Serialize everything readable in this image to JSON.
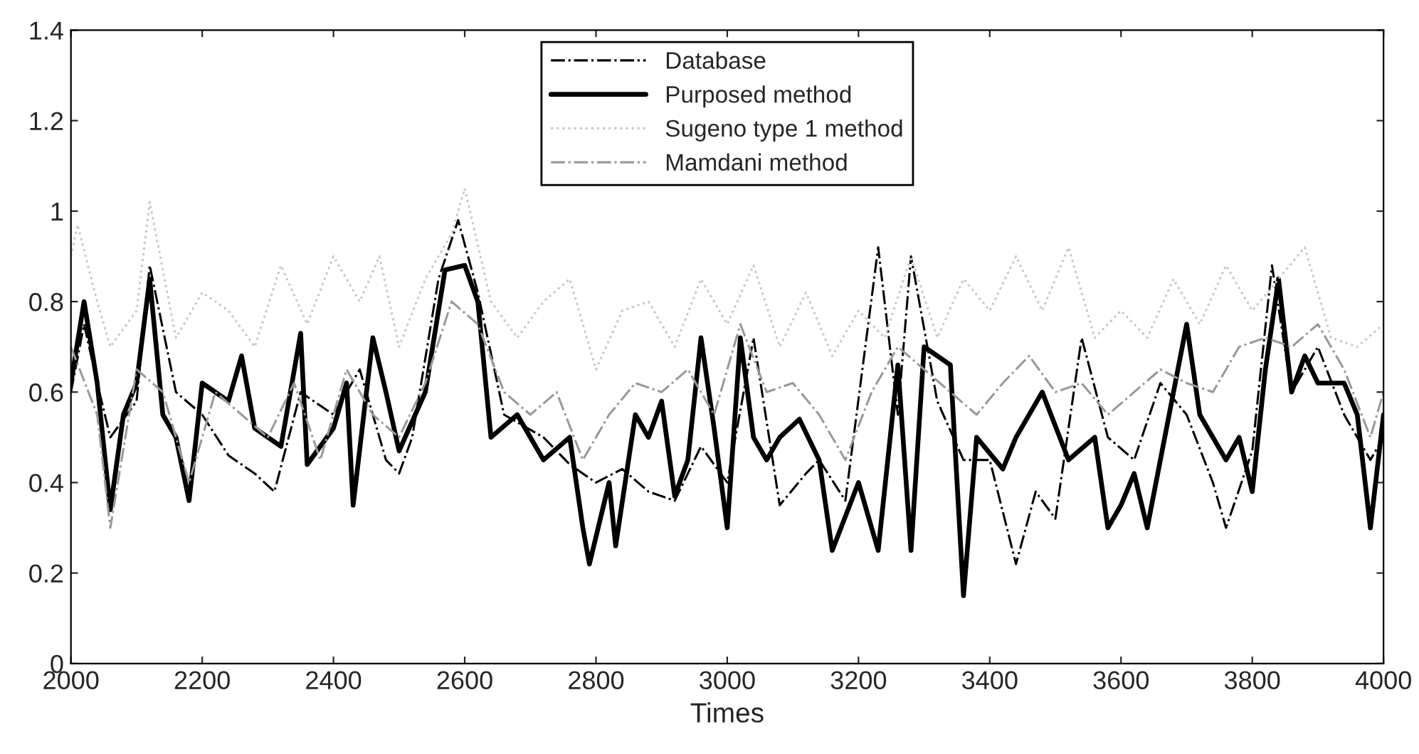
{
  "chart_data": {
    "type": "line",
    "xlabel": "Times",
    "xlim": [
      2000,
      4000
    ],
    "xticks": [
      2000,
      2200,
      2400,
      2600,
      2800,
      3000,
      3200,
      3400,
      3600,
      3800,
      4000
    ],
    "ylim": [
      0,
      1.4
    ],
    "yticks": [
      0,
      0.2,
      0.4,
      0.6,
      0.8,
      1,
      1.2,
      1.4
    ],
    "grid": false,
    "legend": "top",
    "marker": "none",
    "series": [
      {
        "name": "Database",
        "color": "#000000",
        "line_style": "dashed",
        "x": [
          2000,
          2020,
          2040,
          2060,
          2100,
          2120,
          2160,
          2200,
          2240,
          2280,
          2310,
          2350,
          2400,
          2440,
          2480,
          2500,
          2520,
          2560,
          2590,
          2620,
          2660,
          2720,
          2760,
          2800,
          2840,
          2880,
          2920,
          2960,
          3000,
          3040,
          3080,
          3120,
          3140,
          3180,
          3230,
          3260,
          3280,
          3320,
          3360,
          3400,
          3440,
          3470,
          3500,
          3540,
          3580,
          3620,
          3660,
          3700,
          3740,
          3760,
          3800,
          3830,
          3860,
          3900,
          3940,
          3980,
          4000
        ],
        "values": [
          0.6,
          0.75,
          0.62,
          0.5,
          0.58,
          0.88,
          0.6,
          0.55,
          0.46,
          0.42,
          0.38,
          0.6,
          0.55,
          0.65,
          0.45,
          0.42,
          0.5,
          0.85,
          0.98,
          0.82,
          0.55,
          0.5,
          0.44,
          0.4,
          0.43,
          0.38,
          0.36,
          0.48,
          0.4,
          0.72,
          0.35,
          0.42,
          0.45,
          0.36,
          0.92,
          0.55,
          0.9,
          0.58,
          0.45,
          0.45,
          0.22,
          0.38,
          0.32,
          0.72,
          0.5,
          0.45,
          0.62,
          0.55,
          0.4,
          0.3,
          0.47,
          0.88,
          0.6,
          0.7,
          0.55,
          0.45,
          0.5
        ]
      },
      {
        "name": "Purposed method",
        "color": "#000000",
        "line_style": "solid",
        "x": [
          2000,
          2020,
          2040,
          2060,
          2080,
          2100,
          2120,
          2140,
          2160,
          2180,
          2200,
          2240,
          2260,
          2280,
          2320,
          2350,
          2360,
          2400,
          2420,
          2430,
          2460,
          2480,
          2500,
          2540,
          2570,
          2600,
          2620,
          2640,
          2680,
          2720,
          2760,
          2780,
          2790,
          2820,
          2830,
          2860,
          2880,
          2900,
          2920,
          2940,
          2960,
          2980,
          3000,
          3020,
          3040,
          3060,
          3080,
          3110,
          3140,
          3160,
          3200,
          3230,
          3260,
          3280,
          3300,
          3340,
          3360,
          3380,
          3420,
          3440,
          3480,
          3520,
          3560,
          3580,
          3600,
          3620,
          3640,
          3680,
          3700,
          3720,
          3760,
          3780,
          3800,
          3820,
          3840,
          3860,
          3880,
          3900,
          3940,
          3960,
          3980,
          4000
        ],
        "values": [
          0.62,
          0.8,
          0.62,
          0.34,
          0.55,
          0.62,
          0.85,
          0.55,
          0.5,
          0.36,
          0.62,
          0.58,
          0.68,
          0.52,
          0.48,
          0.73,
          0.44,
          0.52,
          0.62,
          0.35,
          0.72,
          0.6,
          0.47,
          0.6,
          0.87,
          0.88,
          0.8,
          0.5,
          0.55,
          0.45,
          0.5,
          0.3,
          0.22,
          0.4,
          0.26,
          0.55,
          0.5,
          0.58,
          0.37,
          0.45,
          0.72,
          0.52,
          0.3,
          0.72,
          0.5,
          0.45,
          0.5,
          0.54,
          0.45,
          0.25,
          0.4,
          0.25,
          0.66,
          0.25,
          0.7,
          0.66,
          0.15,
          0.5,
          0.43,
          0.5,
          0.6,
          0.45,
          0.5,
          0.3,
          0.35,
          0.42,
          0.3,
          0.6,
          0.75,
          0.55,
          0.45,
          0.5,
          0.38,
          0.65,
          0.85,
          0.6,
          0.68,
          0.62,
          0.62,
          0.55,
          0.3,
          0.55
        ]
      },
      {
        "name": "Sugeno type 1 method",
        "color": "#c8c8c8",
        "line_style": "dotted",
        "x": [
          2000,
          2010,
          2040,
          2060,
          2100,
          2120,
          2160,
          2200,
          2240,
          2280,
          2320,
          2360,
          2400,
          2440,
          2470,
          2500,
          2540,
          2580,
          2600,
          2640,
          2680,
          2720,
          2760,
          2800,
          2840,
          2880,
          2920,
          2960,
          3000,
          3040,
          3080,
          3120,
          3160,
          3200,
          3240,
          3280,
          3320,
          3360,
          3400,
          3440,
          3480,
          3520,
          3560,
          3600,
          3640,
          3680,
          3720,
          3760,
          3800,
          3840,
          3880,
          3920,
          3960,
          4000
        ],
        "values": [
          0.9,
          0.97,
          0.8,
          0.7,
          0.78,
          1.02,
          0.72,
          0.82,
          0.78,
          0.7,
          0.88,
          0.75,
          0.9,
          0.8,
          0.9,
          0.7,
          0.85,
          0.95,
          1.05,
          0.8,
          0.72,
          0.8,
          0.85,
          0.65,
          0.78,
          0.8,
          0.7,
          0.85,
          0.75,
          0.88,
          0.7,
          0.82,
          0.68,
          0.78,
          0.72,
          0.9,
          0.72,
          0.85,
          0.78,
          0.9,
          0.78,
          0.92,
          0.72,
          0.78,
          0.72,
          0.85,
          0.75,
          0.88,
          0.78,
          0.85,
          0.92,
          0.72,
          0.7,
          0.75
        ]
      },
      {
        "name": "Mamdani method",
        "color": "#999999",
        "line_style": "dashed",
        "x": [
          2000,
          2040,
          2060,
          2100,
          2140,
          2180,
          2220,
          2260,
          2300,
          2340,
          2380,
          2420,
          2460,
          2500,
          2540,
          2580,
          2620,
          2660,
          2700,
          2740,
          2780,
          2820,
          2860,
          2900,
          2940,
          2980,
          3020,
          3060,
          3100,
          3140,
          3180,
          3220,
          3260,
          3300,
          3340,
          3380,
          3420,
          3460,
          3500,
          3540,
          3580,
          3620,
          3660,
          3700,
          3740,
          3780,
          3820,
          3860,
          3900,
          3940,
          3980,
          4000
        ],
        "values": [
          0.7,
          0.55,
          0.3,
          0.65,
          0.6,
          0.4,
          0.6,
          0.55,
          0.5,
          0.62,
          0.45,
          0.65,
          0.55,
          0.5,
          0.62,
          0.8,
          0.75,
          0.6,
          0.55,
          0.6,
          0.45,
          0.55,
          0.62,
          0.6,
          0.65,
          0.55,
          0.75,
          0.6,
          0.62,
          0.55,
          0.45,
          0.6,
          0.7,
          0.65,
          0.6,
          0.55,
          0.62,
          0.68,
          0.6,
          0.62,
          0.55,
          0.6,
          0.65,
          0.62,
          0.6,
          0.7,
          0.72,
          0.7,
          0.75,
          0.65,
          0.5,
          0.6
        ]
      }
    ]
  }
}
